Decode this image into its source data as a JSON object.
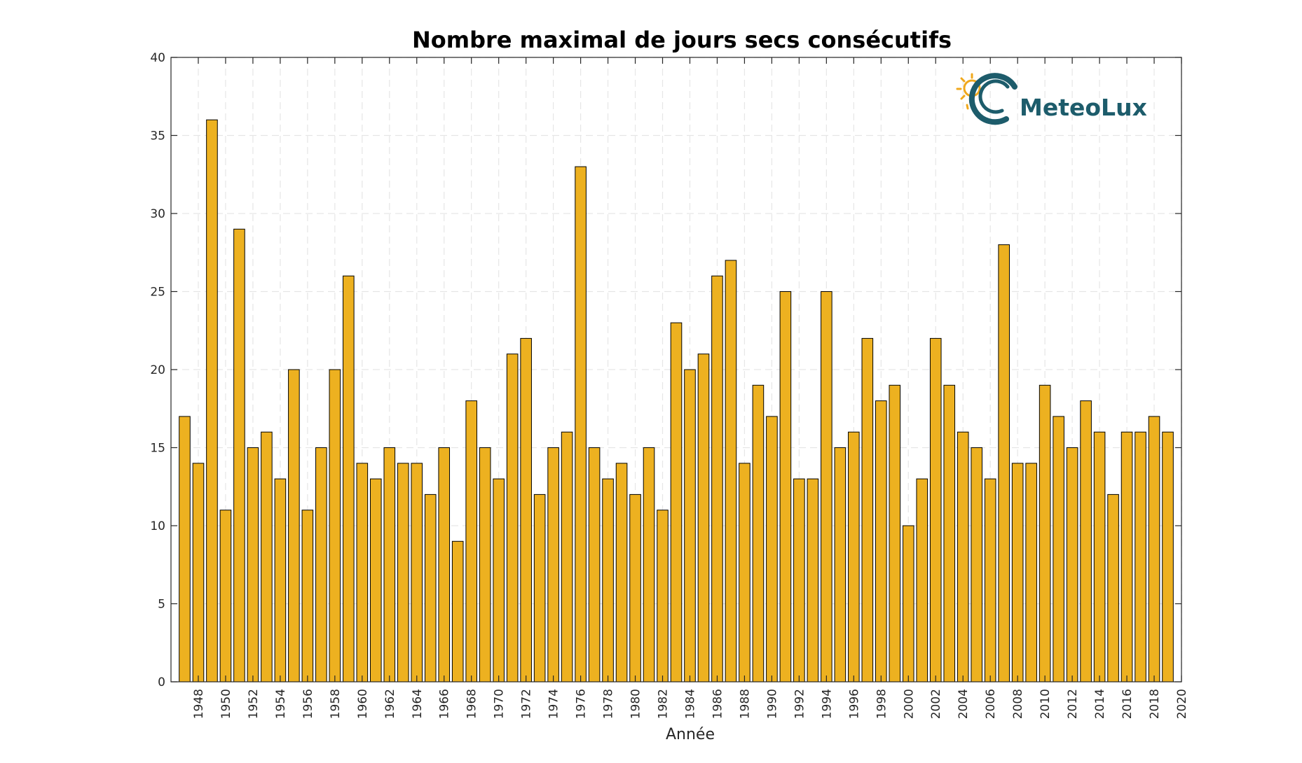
{
  "chart_data": {
    "type": "bar",
    "title": "Nombre maximal de jours secs consécutifs",
    "xlabel": "Année",
    "ylabel": "",
    "ylim": [
      0,
      40
    ],
    "yticks": [
      0,
      5,
      10,
      15,
      20,
      25,
      30,
      35,
      40
    ],
    "xlim": [
      1946,
      2020
    ],
    "xticks": [
      1948,
      1950,
      1952,
      1954,
      1956,
      1958,
      1960,
      1962,
      1964,
      1966,
      1968,
      1970,
      1972,
      1974,
      1976,
      1978,
      1980,
      1982,
      1984,
      1986,
      1988,
      1990,
      1992,
      1994,
      1996,
      1998,
      2000,
      2002,
      2004,
      2006,
      2008,
      2010,
      2012,
      2014,
      2016,
      2018,
      2020
    ],
    "grid": true,
    "categories": [
      1947,
      1948,
      1949,
      1950,
      1951,
      1952,
      1953,
      1954,
      1955,
      1956,
      1957,
      1958,
      1959,
      1960,
      1961,
      1962,
      1963,
      1964,
      1965,
      1966,
      1967,
      1968,
      1969,
      1970,
      1971,
      1972,
      1973,
      1974,
      1975,
      1976,
      1977,
      1978,
      1979,
      1980,
      1981,
      1982,
      1983,
      1984,
      1985,
      1986,
      1987,
      1988,
      1989,
      1990,
      1991,
      1992,
      1993,
      1994,
      1995,
      1996,
      1997,
      1998,
      1999,
      2000,
      2001,
      2002,
      2003,
      2004,
      2005,
      2006,
      2007,
      2008,
      2009,
      2010,
      2011,
      2012,
      2013,
      2014,
      2015,
      2016,
      2017,
      2018,
      2019
    ],
    "values": [
      17,
      14,
      36,
      11,
      29,
      15,
      16,
      13,
      20,
      11,
      15,
      20,
      26,
      14,
      13,
      15,
      14,
      14,
      12,
      15,
      9,
      18,
      15,
      13,
      21,
      22,
      12,
      15,
      16,
      33,
      15,
      13,
      14,
      12,
      15,
      11,
      23,
      20,
      21,
      26,
      27,
      14,
      19,
      17,
      25,
      13,
      13,
      25,
      15,
      16,
      22,
      18,
      19,
      10,
      13,
      22,
      19,
      16,
      15,
      13,
      28,
      14,
      14,
      19,
      17,
      15,
      18,
      16,
      12,
      16,
      16,
      17,
      16
    ],
    "colors": {
      "bar": "#edb120",
      "bar_edge": "#000000",
      "grid": "#e6e6e6",
      "axis": "#262626"
    }
  },
  "logo": {
    "text": "MeteoLux",
    "colors": {
      "text": "#1d5c6b",
      "sun": "#f0a81c",
      "swirl": "#1d5c6b"
    }
  }
}
